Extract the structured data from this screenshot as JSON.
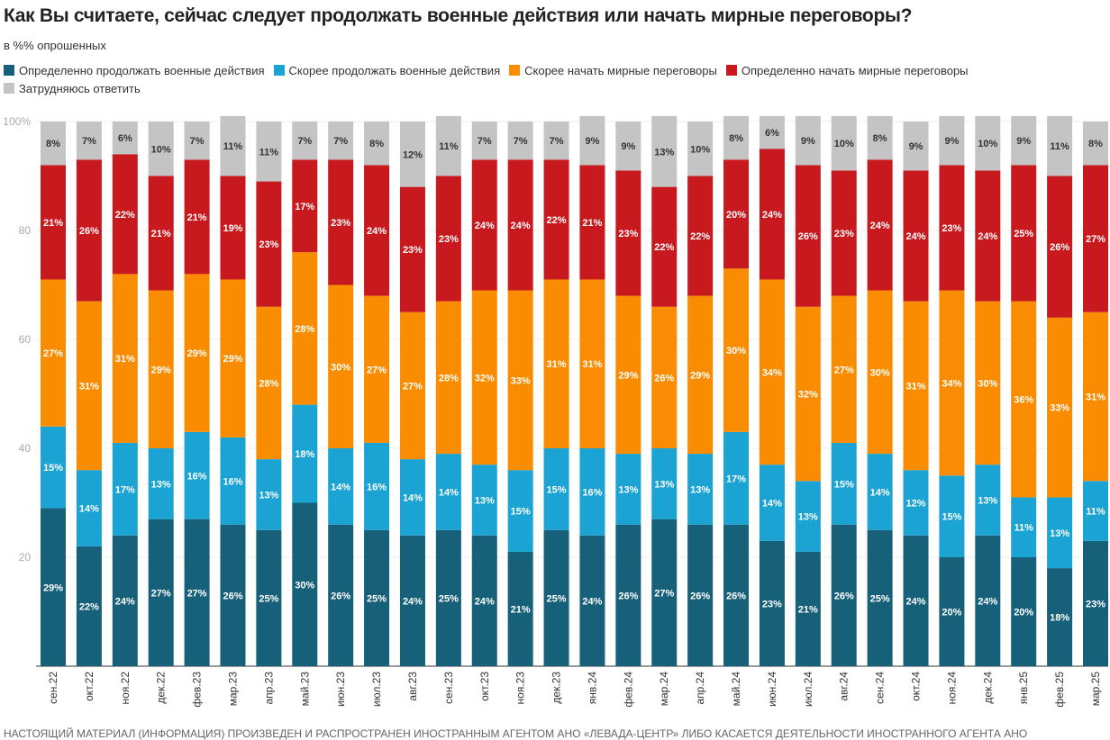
{
  "title": "Как Вы считаете, сейчас следует продолжать военные действия или начать мирные переговоры?",
  "subtitle": "в %% опрошенных",
  "footer": "НАСТОЯЩИЙ МАТЕРИАЛ (ИНФОРМАЦИЯ) ПРОИЗВЕДЕН И РАСПРОСТРАНЕН ИНОСТРАННЫМ АГЕНТОМ АНО «ЛЕВАДА-ЦЕНТР» ЛИБО КАСАЕТСЯ ДЕЯТЕЛЬНОСТИ ИНОСТРАННОГО АГЕНТА АНО",
  "chart_data": {
    "type": "bar",
    "stacked": true,
    "ylim": [
      0,
      100
    ],
    "yticks": [
      "20",
      "40",
      "60",
      "80",
      "100%"
    ],
    "ytick_values": [
      20,
      40,
      60,
      80,
      100
    ],
    "grid": true,
    "legend_position": "top",
    "categories": [
      "сен.22",
      "окт.22",
      "ноя.22",
      "дек.22",
      "фев.23",
      "мар.23",
      "апр.23",
      "май.23",
      "июн.23",
      "июл.23",
      "авг.23",
      "сен.23",
      "окт.23",
      "ноя.23",
      "дек.23",
      "янв.24",
      "фев.24",
      "мар.24",
      "апр.24",
      "май.24",
      "июн.24",
      "июл.24",
      "авг.24",
      "сен.24",
      "окт.24",
      "ноя.24",
      "дек.24",
      "янв.25",
      "фев.25",
      "мар.25"
    ],
    "series": [
      {
        "name": "Определенно продолжать военные действия",
        "color": "#17607a",
        "label_color": "#ffffff",
        "values": [
          29,
          22,
          24,
          27,
          27,
          26,
          25,
          30,
          26,
          25,
          24,
          25,
          24,
          21,
          25,
          24,
          26,
          27,
          26,
          26,
          23,
          21,
          26,
          25,
          24,
          20,
          24,
          20,
          18,
          23
        ]
      },
      {
        "name": "Скорее продолжать военные действия",
        "color": "#1ba3d3",
        "label_color": "#ffffff",
        "values": [
          15,
          14,
          17,
          13,
          16,
          16,
          13,
          18,
          14,
          16,
          14,
          14,
          13,
          15,
          15,
          16,
          13,
          13,
          13,
          17,
          14,
          13,
          15,
          14,
          12,
          15,
          13,
          11,
          13,
          11
        ]
      },
      {
        "name": "Скорее начать мирные переговоры",
        "color": "#f98c00",
        "label_color": "#ffffff",
        "values": [
          27,
          31,
          31,
          29,
          29,
          29,
          28,
          28,
          30,
          27,
          27,
          28,
          32,
          33,
          31,
          31,
          29,
          26,
          29,
          30,
          34,
          32,
          27,
          30,
          31,
          34,
          30,
          36,
          33,
          31
        ]
      },
      {
        "name": "Определенно начать мирные переговоры",
        "color": "#c8191e",
        "label_color": "#ffffff",
        "values": [
          21,
          26,
          22,
          21,
          21,
          19,
          23,
          17,
          23,
          24,
          23,
          23,
          24,
          24,
          22,
          21,
          23,
          22,
          22,
          20,
          24,
          26,
          23,
          24,
          24,
          23,
          24,
          25,
          26,
          27
        ]
      },
      {
        "name": "Затрудняюсь ответить",
        "color": "#c4c4c4",
        "label_color": "#333333",
        "values": [
          8,
          7,
          6,
          10,
          7,
          11,
          11,
          7,
          7,
          8,
          12,
          11,
          7,
          7,
          7,
          9,
          9,
          13,
          10,
          8,
          6,
          9,
          10,
          8,
          9,
          9,
          10,
          9,
          11,
          8
        ]
      }
    ]
  }
}
